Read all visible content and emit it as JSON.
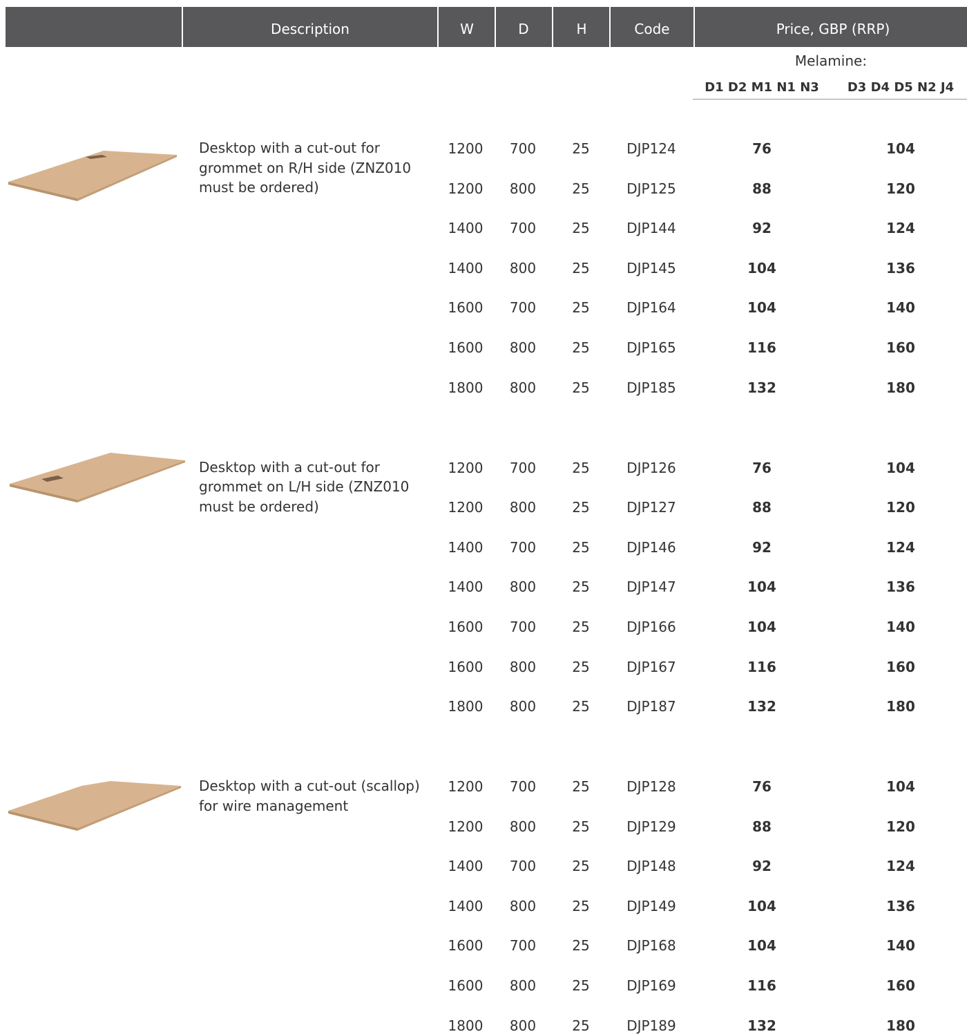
{
  "header": {
    "columns": [
      "Description",
      "W",
      "D",
      "H",
      "Code",
      "Price, GBP (RRP)"
    ]
  },
  "subheader": {
    "material": "Melamine:",
    "price_groups": [
      "D1 D2 M1 N1 N3",
      "D3 D4 D5 N2 J4"
    ]
  },
  "groups": [
    {
      "description": "Desktop with a cut-out for grommet on R/H side (ZNZ010 must be ordered)",
      "rows": [
        [
          "1200",
          "700",
          "25",
          "DJP124",
          "76",
          "104"
        ],
        [
          "1200",
          "800",
          "25",
          "DJP125",
          "88",
          "120"
        ],
        [
          "1400",
          "700",
          "25",
          "DJP144",
          "92",
          "124"
        ],
        [
          "1400",
          "800",
          "25",
          "DJP145",
          "104",
          "136"
        ],
        [
          "1600",
          "700",
          "25",
          "DJP164",
          "104",
          "140"
        ],
        [
          "1600",
          "800",
          "25",
          "DJP165",
          "116",
          "160"
        ],
        [
          "1800",
          "800",
          "25",
          "DJP185",
          "132",
          "180"
        ]
      ]
    },
    {
      "description": "Desktop with a cut-out for grommet on L/H side (ZNZ010 must be ordered)",
      "rows": [
        [
          "1200",
          "700",
          "25",
          "DJP126",
          "76",
          "104"
        ],
        [
          "1200",
          "800",
          "25",
          "DJP127",
          "88",
          "120"
        ],
        [
          "1400",
          "700",
          "25",
          "DJP146",
          "92",
          "124"
        ],
        [
          "1400",
          "800",
          "25",
          "DJP147",
          "104",
          "136"
        ],
        [
          "1600",
          "700",
          "25",
          "DJP166",
          "104",
          "140"
        ],
        [
          "1600",
          "800",
          "25",
          "DJP167",
          "116",
          "160"
        ],
        [
          "1800",
          "800",
          "25",
          "DJP187",
          "132",
          "180"
        ]
      ]
    },
    {
      "description": "Desktop with a cut-out (scallop) for wire management",
      "rows": [
        [
          "1200",
          "700",
          "25",
          "DJP128",
          "76",
          "104"
        ],
        [
          "1200",
          "800",
          "25",
          "DJP129",
          "88",
          "120"
        ],
        [
          "1400",
          "700",
          "25",
          "DJP148",
          "92",
          "124"
        ],
        [
          "1400",
          "800",
          "25",
          "DJP149",
          "104",
          "136"
        ],
        [
          "1600",
          "700",
          "25",
          "DJP168",
          "104",
          "140"
        ],
        [
          "1600",
          "800",
          "25",
          "DJP169",
          "116",
          "160"
        ],
        [
          "1800",
          "800",
          "25",
          "DJP189",
          "132",
          "180"
        ]
      ]
    }
  ]
}
